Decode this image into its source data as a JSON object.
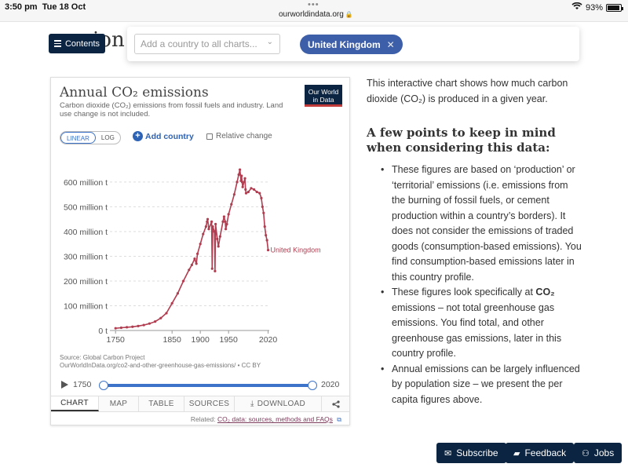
{
  "status_bar": {
    "time": "3:50 pm",
    "date": "Tue 18 Oct",
    "url": "ourworldindata.org",
    "battery": "93%",
    "dots": "•••"
  },
  "page": {
    "heading_fragment": "ion"
  },
  "contents_button": {
    "label": "Contents"
  },
  "search": {
    "placeholder": "Add a country to all charts...",
    "selected_country": "United Kingdom"
  },
  "chart_card": {
    "title": "Annual CO₂ emissions",
    "subtitle": "Carbon dioxide (CO₂) emissions from fossil fuels and industry. Land use change is not included.",
    "logo_line1": "Our World",
    "logo_line2": "in Data",
    "scale_linear": "LINEAR",
    "scale_log": "LOG",
    "add_country": "Add country",
    "relative_change": "Relative change",
    "source_line1": "Source: Global Carbon Project",
    "source_line2": "OurWorldInData.org/co2-and-other-greenhouse-gas-emissions/ • CC BY",
    "timeline_start": "1750",
    "timeline_end": "2020",
    "tabs": {
      "chart": "CHART",
      "map": "MAP",
      "table": "TABLE",
      "sources": "SOURCES",
      "download": "DOWNLOAD"
    },
    "related_prefix": "Related:",
    "related_link": "CO₂ data: sources, methods and FAQs"
  },
  "chart_data": {
    "type": "line",
    "title": "Annual CO₂ emissions",
    "ylabel": "",
    "xlabel": "",
    "ylim": [
      0,
      660
    ],
    "xlim": [
      1740,
      2022
    ],
    "x_ticks": [
      "1750",
      "1850",
      "1900",
      "1950",
      "2020"
    ],
    "y_ticks": [
      "0 t",
      "100 million t",
      "200 million t",
      "300 million t",
      "400 million t",
      "500 million t",
      "600 million t"
    ],
    "y_tick_values": [
      0,
      100,
      200,
      300,
      400,
      500,
      600
    ],
    "x_tick_values": [
      1750,
      1850,
      1900,
      1950,
      2020
    ],
    "unit": "million t",
    "series": [
      {
        "name": "United Kingdom",
        "color": "#b13d50",
        "x": [
          1750,
          1760,
          1770,
          1780,
          1790,
          1800,
          1810,
          1820,
          1830,
          1840,
          1850,
          1860,
          1870,
          1880,
          1885,
          1890,
          1893,
          1895,
          1900,
          1905,
          1910,
          1912,
          1913,
          1915,
          1920,
          1921,
          1922,
          1925,
          1926,
          1927,
          1930,
          1932,
          1935,
          1940,
          1942,
          1944,
          1945,
          1947,
          1950,
          1955,
          1960,
          1965,
          1968,
          1970,
          1972,
          1973,
          1974,
          1975,
          1979,
          1980,
          1981,
          1985,
          1990,
          1995,
          2000,
          2005,
          2008,
          2010,
          2012,
          2014,
          2016,
          2018,
          2020
        ],
        "values": [
          9,
          11,
          13,
          15,
          18,
          22,
          28,
          36,
          50,
          70,
          110,
          150,
          200,
          245,
          265,
          290,
          270,
          310,
          350,
          390,
          420,
          440,
          450,
          410,
          440,
          250,
          420,
          400,
          240,
          430,
          370,
          340,
          380,
          440,
          460,
          440,
          410,
          430,
          470,
          510,
          550,
          600,
          630,
          650,
          605,
          625,
          600,
          580,
          615,
          570,
          555,
          560,
          575,
          570,
          560,
          555,
          535,
          500,
          475,
          420,
          385,
          365,
          325
        ]
      }
    ],
    "series_label": "United Kingdom"
  },
  "article": {
    "intro": "This interactive chart shows how much carbon dioxide (CO₂) is produced in a given year.",
    "keep_heading": "A few points to keep in mind when considering this data:",
    "point1": "These figures are based on ‘production’ or ‘territorial’ emissions (i.e. emissions from the burning of fossil fuels, or cement production within a country’s borders). It does not consider the emissions of traded goods (consumption-based emissions). You find consumption-based emissions later in this country profile.",
    "point2_a": "These figures look specifically at ",
    "point2_bold": "CO₂",
    "point2_b": " emissions – not total greenhouse gas emissions. You find total, and other greenhouse gas emissions, later in this country profile.",
    "point3": "Annual emissions can be largely influenced by population size – we present the per capita figures above."
  },
  "footer_buttons": {
    "subscribe": "Subscribe",
    "feedback": "Feedback",
    "jobs": "Jobs"
  }
}
